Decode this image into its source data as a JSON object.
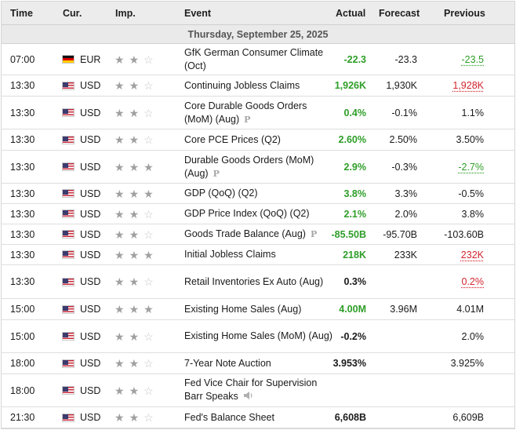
{
  "header": {
    "time": "Time",
    "currency": "Cur.",
    "importance": "Imp.",
    "event": "Event",
    "actual": "Actual",
    "forecast": "Forecast",
    "previous": "Previous"
  },
  "day_label": "Thursday, September 25, 2025",
  "colors": {
    "positive": "#2e9e28",
    "negative": "#d0242e",
    "header_bg": "#ececec"
  },
  "events": [
    {
      "time": "07:00",
      "currency": "EUR",
      "flag": "germany-flag-icon",
      "importance": 2,
      "event": "GfK German Consumer Climate (Oct)",
      "preliminary": false,
      "speech": false,
      "actual": "-22.3",
      "actual_color": "green",
      "forecast": "-23.3",
      "previous": "-23.5",
      "previous_color": "green",
      "previous_revised": true
    },
    {
      "time": "13:30",
      "currency": "USD",
      "flag": "us-flag-icon",
      "importance": 2,
      "event": "Continuing Jobless Claims",
      "preliminary": false,
      "speech": false,
      "actual": "1,926K",
      "actual_color": "green",
      "forecast": "1,930K",
      "previous": "1,928K",
      "previous_color": "red",
      "previous_revised": true
    },
    {
      "time": "13:30",
      "currency": "USD",
      "flag": "us-flag-icon",
      "importance": 2,
      "event": "Core Durable Goods Orders (MoM) (Aug)",
      "preliminary": true,
      "speech": false,
      "actual": "0.4%",
      "actual_color": "green",
      "forecast": "-0.1%",
      "previous": "1.1%",
      "previous_color": "black",
      "previous_revised": false
    },
    {
      "time": "13:30",
      "currency": "USD",
      "flag": "us-flag-icon",
      "importance": 2,
      "event": "Core PCE Prices (Q2)",
      "preliminary": false,
      "speech": false,
      "actual": "2.60%",
      "actual_color": "green",
      "forecast": "2.50%",
      "previous": "3.50%",
      "previous_color": "black",
      "previous_revised": false
    },
    {
      "time": "13:30",
      "currency": "USD",
      "flag": "us-flag-icon",
      "importance": 3,
      "event": "Durable Goods Orders (MoM) (Aug)",
      "preliminary": true,
      "speech": false,
      "actual": "2.9%",
      "actual_color": "green",
      "forecast": "-0.3%",
      "previous": "-2.7%",
      "previous_color": "green",
      "previous_revised": true
    },
    {
      "time": "13:30",
      "currency": "USD",
      "flag": "us-flag-icon",
      "importance": 3,
      "event": "GDP (QoQ) (Q2)",
      "preliminary": false,
      "speech": false,
      "actual": "3.8%",
      "actual_color": "green",
      "forecast": "3.3%",
      "previous": "-0.5%",
      "previous_color": "black",
      "previous_revised": false
    },
    {
      "time": "13:30",
      "currency": "USD",
      "flag": "us-flag-icon",
      "importance": 2,
      "event": "GDP Price Index (QoQ) (Q2)",
      "preliminary": false,
      "speech": false,
      "actual": "2.1%",
      "actual_color": "green",
      "forecast": "2.0%",
      "previous": "3.8%",
      "previous_color": "black",
      "previous_revised": false
    },
    {
      "time": "13:30",
      "currency": "USD",
      "flag": "us-flag-icon",
      "importance": 2,
      "event": "Goods Trade Balance (Aug)",
      "preliminary": true,
      "speech": false,
      "actual": "-85.50B",
      "actual_color": "green",
      "forecast": "-95.70B",
      "previous": "-103.60B",
      "previous_color": "black",
      "previous_revised": false
    },
    {
      "time": "13:30",
      "currency": "USD",
      "flag": "us-flag-icon",
      "importance": 3,
      "event": "Initial Jobless Claims",
      "preliminary": false,
      "speech": false,
      "actual": "218K",
      "actual_color": "green",
      "forecast": "233K",
      "previous": "232K",
      "previous_color": "red",
      "previous_revised": true
    },
    {
      "time": "13:30",
      "currency": "USD",
      "flag": "us-flag-icon",
      "importance": 2,
      "event": "Retail Inventories Ex Auto (Aug)",
      "preliminary": false,
      "speech": false,
      "actual": "0.3%",
      "actual_color": "black",
      "forecast": "",
      "previous": "0.2%",
      "previous_color": "red",
      "previous_revised": true
    },
    {
      "time": "15:00",
      "currency": "USD",
      "flag": "us-flag-icon",
      "importance": 3,
      "event": "Existing Home Sales (Aug)",
      "preliminary": false,
      "speech": false,
      "actual": "4.00M",
      "actual_color": "green",
      "forecast": "3.96M",
      "previous": "4.01M",
      "previous_color": "black",
      "previous_revised": false
    },
    {
      "time": "15:00",
      "currency": "USD",
      "flag": "us-flag-icon",
      "importance": 2,
      "event": "Existing Home Sales (MoM) (Aug)",
      "preliminary": false,
      "speech": false,
      "actual": "-0.2%",
      "actual_color": "black",
      "forecast": "",
      "previous": "2.0%",
      "previous_color": "black",
      "previous_revised": false
    },
    {
      "time": "18:00",
      "currency": "USD",
      "flag": "us-flag-icon",
      "importance": 2,
      "event": "7-Year Note Auction",
      "preliminary": false,
      "speech": false,
      "actual": "3.953%",
      "actual_color": "black",
      "forecast": "",
      "previous": "3.925%",
      "previous_color": "black",
      "previous_revised": false
    },
    {
      "time": "18:00",
      "currency": "USD",
      "flag": "us-flag-icon",
      "importance": 2,
      "event": "Fed Vice Chair for Supervision Barr Speaks",
      "preliminary": false,
      "speech": true,
      "actual": "",
      "actual_color": "black",
      "forecast": "",
      "previous": "",
      "previous_color": "black",
      "previous_revised": false
    },
    {
      "time": "21:30",
      "currency": "USD",
      "flag": "us-flag-icon",
      "importance": 2,
      "event": "Fed's Balance Sheet",
      "preliminary": false,
      "speech": false,
      "actual": "6,608B",
      "actual_color": "black",
      "forecast": "",
      "previous": "6,609B",
      "previous_color": "black",
      "previous_revised": false
    }
  ],
  "preliminary_marker": "P"
}
